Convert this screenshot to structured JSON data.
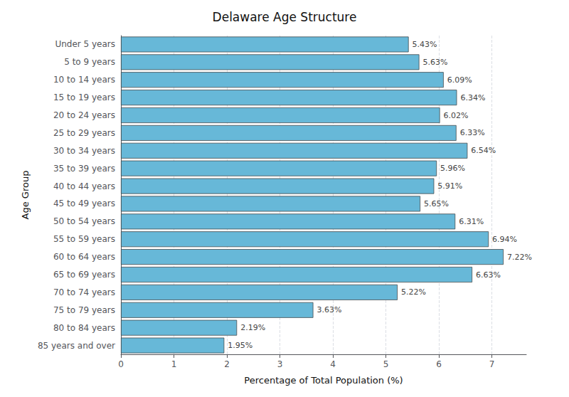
{
  "chart_data": {
    "type": "bar",
    "orientation": "horizontal",
    "title": "Delaware Age Structure",
    "xlabel": "Percentage of Total Population (%)",
    "ylabel": "Age Group",
    "categories": [
      "Under 5 years",
      "5 to 9 years",
      "10 to 14 years",
      "15 to 19 years",
      "20 to 24 years",
      "25 to 29 years",
      "30 to 34 years",
      "35 to 39 years",
      "40 to 44 years",
      "45 to 49 years",
      "50 to 54 years",
      "55 to 59 years",
      "60 to 64 years",
      "65 to 69 years",
      "70 to 74 years",
      "75 to 79 years",
      "80 to 84 years",
      "85 years and over"
    ],
    "values": [
      5.43,
      5.63,
      6.09,
      6.34,
      6.02,
      6.33,
      6.54,
      5.96,
      5.91,
      5.65,
      6.31,
      6.94,
      7.22,
      6.63,
      5.22,
      3.63,
      2.19,
      1.95
    ],
    "value_labels": [
      "5.43%",
      "5.63%",
      "6.09%",
      "6.34%",
      "6.02%",
      "6.33%",
      "6.54%",
      "5.96%",
      "5.91%",
      "5.65%",
      "6.31%",
      "6.94%",
      "7.22%",
      "6.63%",
      "5.22%",
      "3.63%",
      "2.19%",
      "1.95%"
    ],
    "color": "#67B8D8",
    "xlim": [
      0,
      7.65
    ],
    "xticks": [
      0,
      1,
      2,
      3,
      4,
      5,
      6,
      7
    ],
    "grid": true,
    "data_labels": true
  }
}
